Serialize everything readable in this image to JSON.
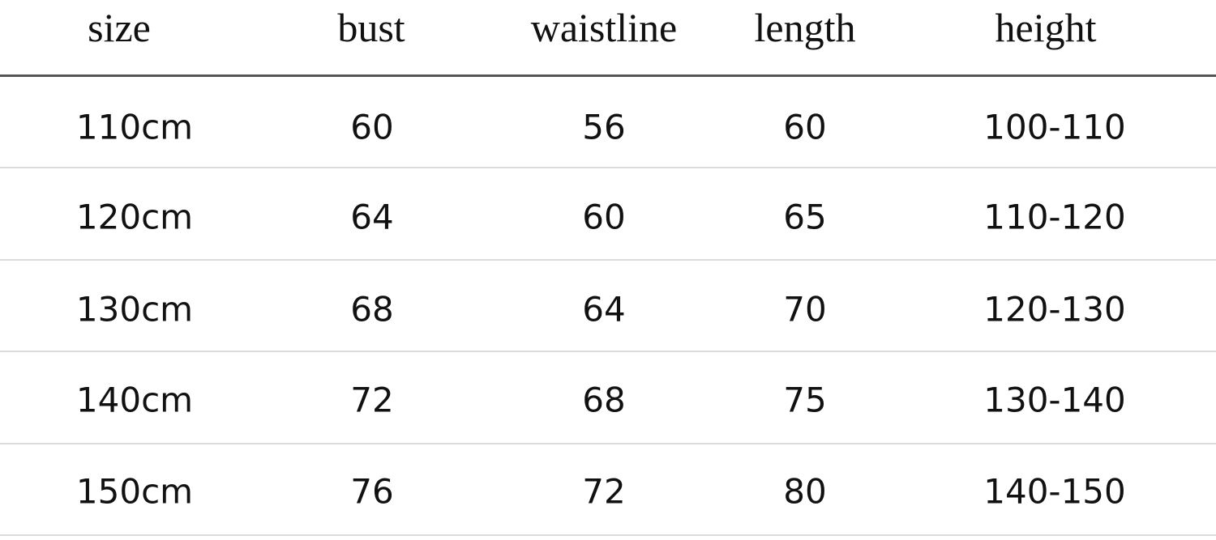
{
  "table": {
    "headers": [
      "size",
      "bust",
      "waistline",
      "length",
      "height"
    ],
    "rows": [
      [
        "110cm",
        "60",
        "56",
        "60",
        "100-110"
      ],
      [
        "120cm",
        "64",
        "60",
        "65",
        "110-120"
      ],
      [
        "130cm",
        "68",
        "64",
        "70",
        "120-130"
      ],
      [
        "140cm",
        "72",
        "68",
        "75",
        "130-140"
      ],
      [
        "150cm",
        "76",
        "72",
        "80",
        "140-150"
      ]
    ]
  }
}
